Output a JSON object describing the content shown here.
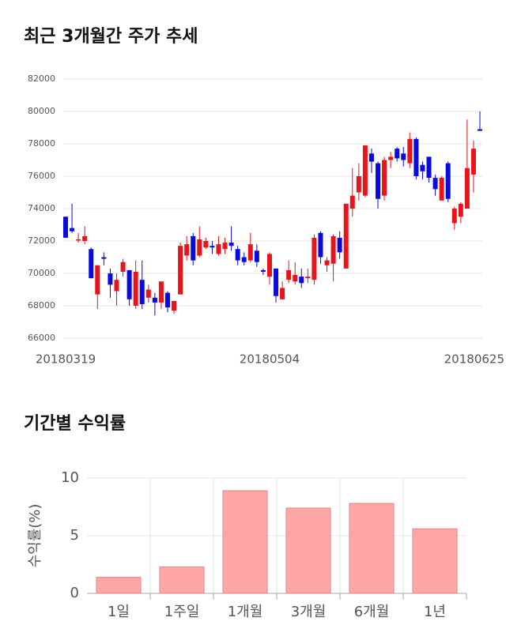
{
  "chart_data": [
    {
      "type": "candlestick",
      "title": "최근 3개월간 주가 추세",
      "categories": [
        "20180319",
        null,
        null,
        null,
        null,
        null,
        null,
        null,
        null,
        null,
        null,
        null,
        null,
        null,
        null,
        null,
        null,
        null,
        null,
        null,
        null,
        null,
        null,
        null,
        null,
        null,
        null,
        null,
        null,
        null,
        null,
        null,
        "20180504",
        null,
        null,
        null,
        null,
        null,
        null,
        null,
        null,
        null,
        null,
        null,
        null,
        null,
        null,
        null,
        null,
        null,
        null,
        null,
        null,
        null,
        null,
        null,
        null,
        null,
        null,
        null,
        null,
        null,
        null,
        null,
        null,
        "20180625"
      ],
      "open": [
        73500,
        72800,
        72100,
        72000,
        71500,
        68700,
        71000,
        70000,
        68900,
        70100,
        70200,
        68000,
        69600,
        68500,
        68500,
        68200,
        68800,
        67700,
        68700,
        71100,
        72300,
        71100,
        71600,
        71700,
        71200,
        71500,
        71900,
        71500,
        71000,
        70800,
        71400,
        70200,
        69800,
        70300,
        68400,
        69600,
        69500,
        69800,
        69700,
        69600,
        72500,
        70500,
        70600,
        72200,
        70300,
        74000,
        75000,
        74800,
        77400,
        76800,
        74800,
        77000,
        77700,
        77400,
        76800,
        78300,
        76700,
        77200,
        75900,
        74500,
        76800,
        73100,
        73500,
        74000,
        76100,
        78900
      ],
      "high": [
        73500,
        74300,
        72500,
        72900,
        71600,
        70500,
        71300,
        70300,
        70000,
        70900,
        70200,
        70800,
        70800,
        69300,
        68800,
        69500,
        68900,
        68300,
        71900,
        72300,
        72500,
        72900,
        72200,
        72000,
        72300,
        72200,
        72900,
        71700,
        71300,
        72500,
        71800,
        70300,
        71300,
        70300,
        69500,
        70800,
        70700,
        70300,
        70300,
        72400,
        72600,
        71000,
        72400,
        72600,
        74300,
        76500,
        76800,
        77900,
        77700,
        76900,
        77200,
        77500,
        77800,
        77800,
        78700,
        78400,
        76900,
        77200,
        76100,
        76000,
        76900,
        74100,
        74400,
        79500,
        78200,
        80000
      ],
      "low": [
        72200,
        72500,
        71900,
        71800,
        69700,
        67800,
        70500,
        68500,
        68000,
        69800,
        68000,
        67800,
        67800,
        68200,
        67400,
        67800,
        67600,
        67500,
        68700,
        70800,
        70500,
        71000,
        71500,
        71200,
        71100,
        71200,
        71400,
        70500,
        70500,
        70700,
        70400,
        69900,
        69300,
        68200,
        68400,
        69400,
        69300,
        69100,
        69400,
        69300,
        70600,
        70100,
        69500,
        70900,
        70300,
        73500,
        74500,
        74700,
        76200,
        74000,
        74500,
        76500,
        76900,
        76600,
        76500,
        75800,
        75800,
        75600,
        74800,
        74500,
        74400,
        72700,
        73100,
        74000,
        75000,
        78800
      ],
      "close": [
        72200,
        72600,
        72100,
        72300,
        69700,
        70500,
        70900,
        69300,
        69600,
        70700,
        68400,
        70100,
        68100,
        69000,
        68200,
        69500,
        67900,
        68300,
        71700,
        71800,
        70800,
        72100,
        72000,
        71600,
        71800,
        71900,
        71700,
        70800,
        70700,
        71800,
        70700,
        70100,
        71200,
        68600,
        69100,
        70200,
        69900,
        69400,
        69800,
        72200,
        71000,
        70800,
        72300,
        71300,
        74300,
        74800,
        76000,
        77900,
        76900,
        74600,
        77000,
        77200,
        77100,
        77000,
        78300,
        76000,
        76300,
        75900,
        75200,
        75900,
        74600,
        74000,
        74300,
        76500,
        77700,
        78800
      ],
      "up_color": "#e8141b",
      "down_color": "#0a0adc",
      "ylim": [
        66000,
        82000
      ],
      "yticks": [
        66000,
        68000,
        70000,
        72000,
        74000,
        76000,
        78000,
        80000,
        82000
      ],
      "grid": true
    },
    {
      "type": "bar",
      "title": "기간별 수익률",
      "ylabel": "수익률(%)",
      "categories": [
        "1일",
        "1주일",
        "1개월",
        "3개월",
        "6개월",
        "1년"
      ],
      "values": [
        1.4,
        2.3,
        8.9,
        7.4,
        7.8,
        5.6
      ],
      "color": "#ffa6a6",
      "ylim": [
        0,
        10
      ],
      "yticks": [
        0,
        5,
        10
      ],
      "grid": true
    }
  ]
}
